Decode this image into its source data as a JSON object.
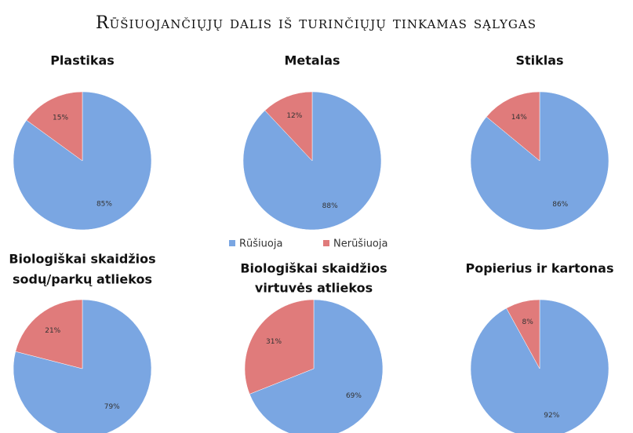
{
  "title": "Rūšiuojančiųjų dalis iš turinčiųjų tinkamas sąlygas",
  "legend": {
    "labels": [
      "Rūšiuoja",
      "Nerūšiuoja"
    ],
    "colors": [
      "#7aa6e2",
      "#e07b7b"
    ]
  },
  "chart_data": [
    {
      "type": "pie",
      "title": [
        "Plastikas"
      ],
      "values": [
        85,
        15
      ],
      "value_labels": [
        "85%",
        "15%"
      ]
    },
    {
      "type": "pie",
      "title": [
        "Metalas"
      ],
      "values": [
        88,
        12
      ],
      "value_labels": [
        "88%",
        "12%"
      ]
    },
    {
      "type": "pie",
      "title": [
        "Stiklas"
      ],
      "values": [
        86,
        14
      ],
      "value_labels": [
        "86%",
        "14%"
      ]
    },
    {
      "type": "pie",
      "title": [
        "Biologiškai skaidžios",
        "sodų/parkų atliekos"
      ],
      "values": [
        79,
        21
      ],
      "value_labels": [
        "79%",
        "21%"
      ]
    },
    {
      "type": "pie",
      "title": [
        "Biologiškai skaidžios",
        "virtuvės atliekos"
      ],
      "values": [
        69,
        31
      ],
      "value_labels": [
        "69%",
        "31%"
      ]
    },
    {
      "type": "pie",
      "title": [
        "Popierius ir kartonas"
      ],
      "values": [
        92,
        8
      ],
      "value_labels": [
        "92%",
        "8%"
      ]
    }
  ]
}
